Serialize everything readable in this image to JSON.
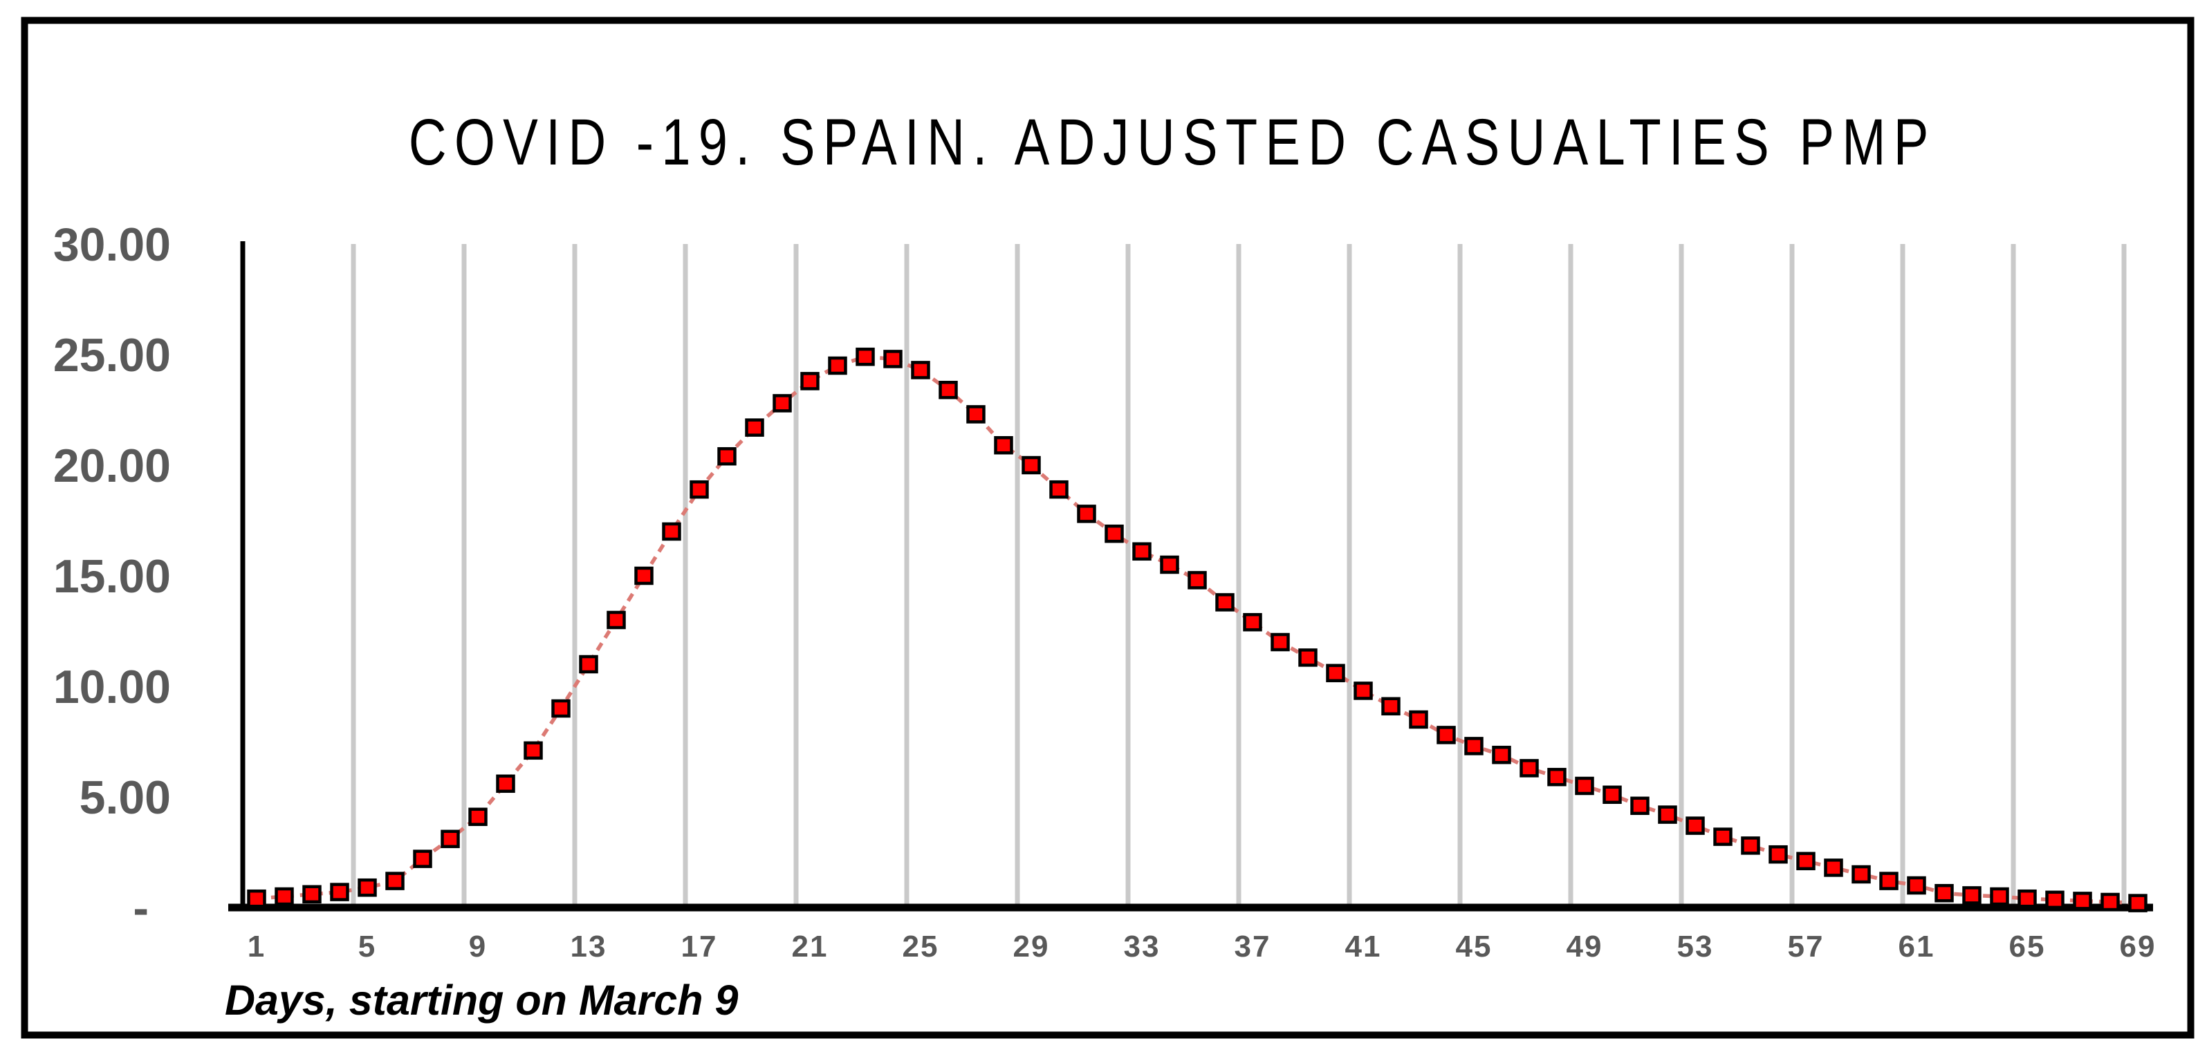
{
  "window": {
    "background": "#ffffff",
    "frame_color": "#000000"
  },
  "chart_data": {
    "type": "line",
    "title": "COVID -19. SPAIN. ADJUSTED CASUALTIES PMP",
    "xlabel": "Days, starting on March 9",
    "ylabel": "",
    "legend": "none",
    "grid": "vertical-only, every 4 days at category boundaries",
    "ylim": [
      0,
      30
    ],
    "xlim": [
      1,
      69
    ],
    "x_tick_labels": [
      1,
      5,
      9,
      13,
      17,
      21,
      25,
      29,
      33,
      37,
      41,
      45,
      49,
      53,
      57,
      61,
      65,
      69
    ],
    "y_ticks": [
      {
        "value": 30,
        "label": "30.00"
      },
      {
        "value": 25,
        "label": "25.00"
      },
      {
        "value": 20,
        "label": "20.00"
      },
      {
        "value": 15,
        "label": "15.00"
      },
      {
        "value": 10,
        "label": "10.00"
      },
      {
        "value": 5,
        "label": "5.00"
      },
      {
        "value": 0,
        "label": "-"
      }
    ],
    "x": [
      1,
      2,
      3,
      4,
      5,
      6,
      7,
      8,
      9,
      10,
      11,
      12,
      13,
      14,
      15,
      16,
      17,
      18,
      19,
      20,
      21,
      22,
      23,
      24,
      25,
      26,
      27,
      28,
      29,
      30,
      31,
      32,
      33,
      34,
      35,
      36,
      37,
      38,
      39,
      40,
      41,
      42,
      43,
      44,
      45,
      46,
      47,
      48,
      49,
      50,
      51,
      52,
      53,
      54,
      55,
      56,
      57,
      58,
      59,
      60,
      61,
      62,
      63,
      64,
      65,
      66,
      67,
      68,
      69
    ],
    "series": [
      {
        "name": "Adjusted casualties PMP",
        "values": [
          0.4,
          0.5,
          0.6,
          0.7,
          0.9,
          1.2,
          2.2,
          3.1,
          4.1,
          5.6,
          7.1,
          9.0,
          11.0,
          13.0,
          15.0,
          17.0,
          18.9,
          20.4,
          21.7,
          22.8,
          23.8,
          24.5,
          24.9,
          24.8,
          24.3,
          23.4,
          22.3,
          20.9,
          20.0,
          18.9,
          17.8,
          16.9,
          16.1,
          15.5,
          14.8,
          13.8,
          12.9,
          12.0,
          11.3,
          10.6,
          9.8,
          9.1,
          8.5,
          7.8,
          7.3,
          6.9,
          6.3,
          5.9,
          5.5,
          5.1,
          4.6,
          4.2,
          3.7,
          3.2,
          2.8,
          2.4,
          2.1,
          1.8,
          1.5,
          1.2,
          1.0,
          0.65,
          0.55,
          0.5,
          0.4,
          0.35,
          0.3,
          0.25,
          0.2
        ]
      }
    ],
    "marker": {
      "shape": "square",
      "fill": "#ff0000",
      "stroke": "#000000"
    },
    "line": {
      "color": "#dc7a74",
      "style": "dashed"
    },
    "colors": {
      "grid": "#c9c9c9",
      "axis": "#000000",
      "tick_text": "#595959",
      "title_text": "#000000",
      "xlabel_text": "#000000"
    }
  }
}
